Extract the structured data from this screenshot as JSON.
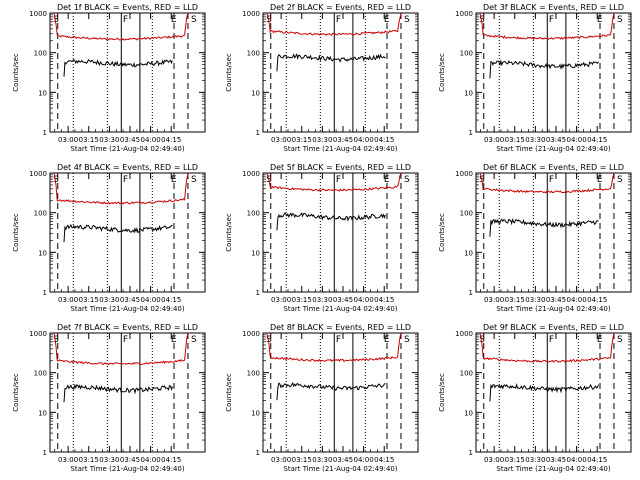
{
  "figure": {
    "y_axis_label": "Counts/sec",
    "x_axis_label": "Start Time (21-Aug-04 02:49:40)",
    "x_tick_labels": [
      "03:00",
      "03:15",
      "03:30",
      "03:45",
      "04:00",
      "04:15"
    ],
    "y_tick_labels": [
      "1",
      "10",
      "100",
      "1000"
    ],
    "marker_labels": {
      "S": "S",
      "F": "F",
      "E": "E"
    }
  },
  "chart_data": [
    {
      "type": "line",
      "title": "Det 1f BLACK = Events, RED = LLD",
      "yscale": "log",
      "ylim": [
        1,
        1000
      ],
      "xlabel": "Start Time (21-Aug-04 02:49:40)",
      "ylabel": "Counts/sec",
      "series": [
        {
          "name": "Events",
          "color": "#000000",
          "level": 55
        },
        {
          "name": "LLD",
          "color": "#cc0000",
          "level": 250
        }
      ]
    },
    {
      "type": "line",
      "title": "Det 2f BLACK = Events, RED = LLD",
      "yscale": "log",
      "ylim": [
        1,
        1000
      ],
      "xlabel": "Start Time (21-Aug-04 02:49:40)",
      "ylabel": "Counts/sec",
      "series": [
        {
          "name": "Events",
          "color": "#000000",
          "level": 75
        },
        {
          "name": "LLD",
          "color": "#cc0000",
          "level": 330
        }
      ]
    },
    {
      "type": "line",
      "title": "Det 3f BLACK = Events, RED = LLD",
      "yscale": "log",
      "ylim": [
        1,
        1000
      ],
      "xlabel": "Start Time (21-Aug-04 02:49:40)",
      "ylabel": "Counts/sec",
      "series": [
        {
          "name": "Events",
          "color": "#000000",
          "level": 50
        },
        {
          "name": "LLD",
          "color": "#cc0000",
          "level": 260
        }
      ]
    },
    {
      "type": "line",
      "title": "Det 4f BLACK = Events, RED = LLD",
      "yscale": "log",
      "ylim": [
        1,
        1000
      ],
      "xlabel": "Start Time (21-Aug-04 02:49:40)",
      "ylabel": "Counts/sec",
      "series": [
        {
          "name": "Events",
          "color": "#000000",
          "level": 40
        },
        {
          "name": "LLD",
          "color": "#cc0000",
          "level": 200
        }
      ]
    },
    {
      "type": "line",
      "title": "Det 5f BLACK = Events, RED = LLD",
      "yscale": "log",
      "ylim": [
        1,
        1000
      ],
      "xlabel": "Start Time (21-Aug-04 02:49:40)",
      "ylabel": "Counts/sec",
      "series": [
        {
          "name": "Events",
          "color": "#000000",
          "level": 80
        },
        {
          "name": "LLD",
          "color": "#cc0000",
          "level": 420
        }
      ]
    },
    {
      "type": "line",
      "title": "Det 6f BLACK = Events, RED = LLD",
      "yscale": "log",
      "ylim": [
        1,
        1000
      ],
      "xlabel": "Start Time (21-Aug-04 02:49:40)",
      "ylabel": "Counts/sec",
      "series": [
        {
          "name": "Events",
          "color": "#000000",
          "level": 55
        },
        {
          "name": "LLD",
          "color": "#cc0000",
          "level": 380
        }
      ]
    },
    {
      "type": "line",
      "title": "Det 7f BLACK = Events, RED = LLD",
      "yscale": "log",
      "ylim": [
        1,
        1000
      ],
      "xlabel": "Start Time (21-Aug-04 02:49:40)",
      "ylabel": "Counts/sec",
      "series": [
        {
          "name": "Events",
          "color": "#000000",
          "level": 40
        },
        {
          "name": "LLD",
          "color": "#cc0000",
          "level": 190
        }
      ]
    },
    {
      "type": "line",
      "title": "Det 8f BLACK = Events, RED = LLD",
      "yscale": "log",
      "ylim": [
        1,
        1000
      ],
      "xlabel": "Start Time (21-Aug-04 02:49:40)",
      "ylabel": "Counts/sec",
      "series": [
        {
          "name": "Events",
          "color": "#000000",
          "level": 45
        },
        {
          "name": "LLD",
          "color": "#cc0000",
          "level": 230
        }
      ]
    },
    {
      "type": "line",
      "title": "Det 9f BLACK = Events, RED = LLD",
      "yscale": "log",
      "ylim": [
        1,
        1000
      ],
      "xlabel": "Start Time (21-Aug-04 02:49:40)",
      "ylabel": "Counts/sec",
      "series": [
        {
          "name": "Events",
          "color": "#000000",
          "level": 42
        },
        {
          "name": "LLD",
          "color": "#cc0000",
          "level": 220
        }
      ]
    }
  ]
}
